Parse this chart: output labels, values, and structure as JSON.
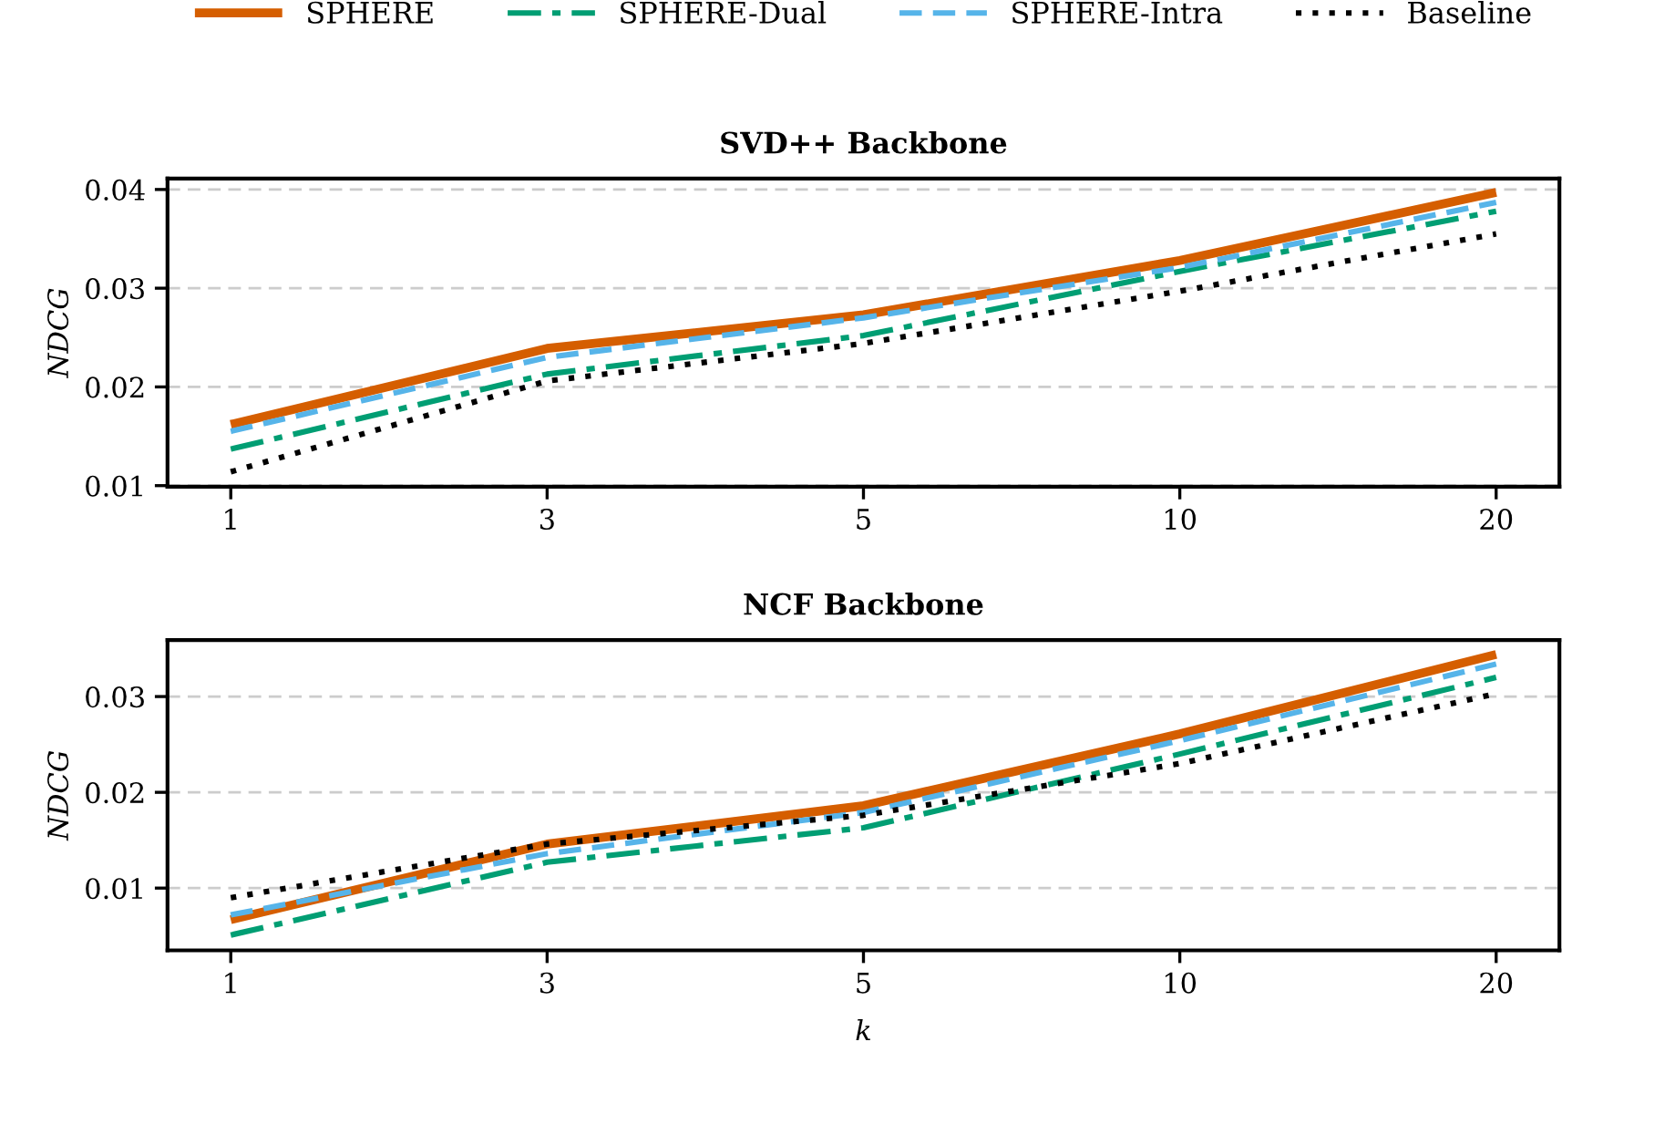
{
  "chart_data": [
    {
      "type": "line",
      "title": "SVD++ Backbone",
      "ylabel": "NDCG",
      "categories": [
        "1",
        "3",
        "5",
        "10",
        "20"
      ],
      "ylim": [
        0.0099,
        0.0411
      ],
      "yticks": [
        0.01,
        0.02,
        0.03,
        0.04
      ],
      "grid": "y",
      "legend": "top",
      "marker": "none",
      "series": [
        {
          "name": "SPHERE",
          "color": "#d55e00",
          "line_style": "solid",
          "values": [
            0.0162,
            0.0239,
            0.0273,
            0.0328,
            0.0397
          ]
        },
        {
          "name": "SPHERE-Dual",
          "color": "#009e73",
          "line_style": "dashdot",
          "values": [
            0.0137,
            0.0213,
            0.0252,
            0.0317,
            0.0378
          ]
        },
        {
          "name": "SPHERE-Intra",
          "color": "#56b4e9",
          "line_style": "dashed",
          "values": [
            0.0155,
            0.023,
            0.027,
            0.0321,
            0.0387
          ]
        },
        {
          "name": "Baseline",
          "color": "#000000",
          "line_style": "dotted",
          "values": [
            0.0114,
            0.0206,
            0.0244,
            0.0297,
            0.0355
          ]
        }
      ]
    },
    {
      "type": "line",
      "title": "NCF Backbone",
      "xlabel": "k",
      "ylabel": "NDCG",
      "categories": [
        "1",
        "3",
        "5",
        "10",
        "20"
      ],
      "ylim": [
        0.0035,
        0.0359
      ],
      "yticks": [
        0.01,
        0.02,
        0.03
      ],
      "grid": "y",
      "marker": "none",
      "series": [
        {
          "color": "#d55e00",
          "line_style": "solid",
          "values": [
            0.0067,
            0.0146,
            0.0186,
            0.0261,
            0.0344
          ]
        },
        {
          "color": "#009e73",
          "line_style": "dashdot",
          "values": [
            0.0051,
            0.0127,
            0.0163,
            0.024,
            0.032
          ]
        },
        {
          "color": "#56b4e9",
          "line_style": "dashed",
          "values": [
            0.0072,
            0.0136,
            0.0179,
            0.0254,
            0.0334
          ]
        },
        {
          "color": "#000000",
          "line_style": "dotted",
          "values": [
            0.009,
            0.0146,
            0.0176,
            0.023,
            0.0303
          ]
        }
      ]
    }
  ]
}
